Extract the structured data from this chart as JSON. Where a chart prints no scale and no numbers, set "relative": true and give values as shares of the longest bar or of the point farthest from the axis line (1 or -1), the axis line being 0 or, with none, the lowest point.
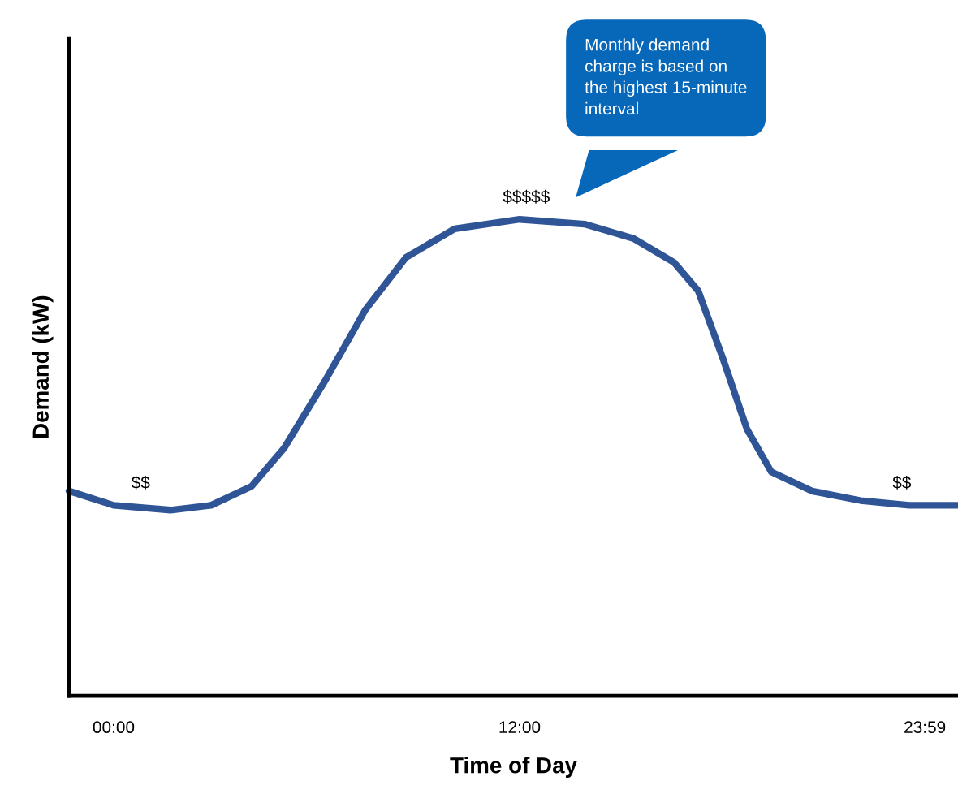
{
  "chart_data": {
    "type": "line",
    "relative": true,
    "xlabel": "Time of Day",
    "ylabel": "Demand (kW)",
    "xlim": [
      -1.32,
      24.96
    ],
    "xticks": [
      {
        "value": 0,
        "label": "00:00"
      },
      {
        "value": 12,
        "label": "12:00"
      },
      {
        "value": 23.98,
        "label": "23:59"
      }
    ],
    "series": [
      {
        "color": "#2f5597",
        "x": [
          -1.32,
          0,
          1.68,
          2.88,
          4.08,
          5.04,
          6.24,
          7.44,
          8.64,
          10.08,
          12,
          13.92,
          15.36,
          16.56,
          17.28,
          18,
          18.72,
          19.44,
          20.64,
          22.08,
          23.52,
          24.96
        ],
        "values": [
          0.43,
          0.4,
          0.39,
          0.4,
          0.44,
          0.52,
          0.66,
          0.81,
          0.92,
          0.98,
          1.0,
          0.99,
          0.96,
          0.91,
          0.85,
          0.71,
          0.56,
          0.47,
          0.43,
          0.41,
          0.4,
          0.4
        ]
      }
    ],
    "annotations": [
      {
        "text": "$$",
        "x": 0.8,
        "y": 0.4
      },
      {
        "text": "$$$$$",
        "x": 12.2,
        "y": 1.0
      },
      {
        "text": "$$",
        "x": 23.3,
        "y": 0.4
      },
      "Monthly demand\ncharge is based on\nthe highest 15-minute\ninterval"
    ],
    "grid": false,
    "legend": false,
    "marker": "none",
    "line_style": "solid"
  }
}
